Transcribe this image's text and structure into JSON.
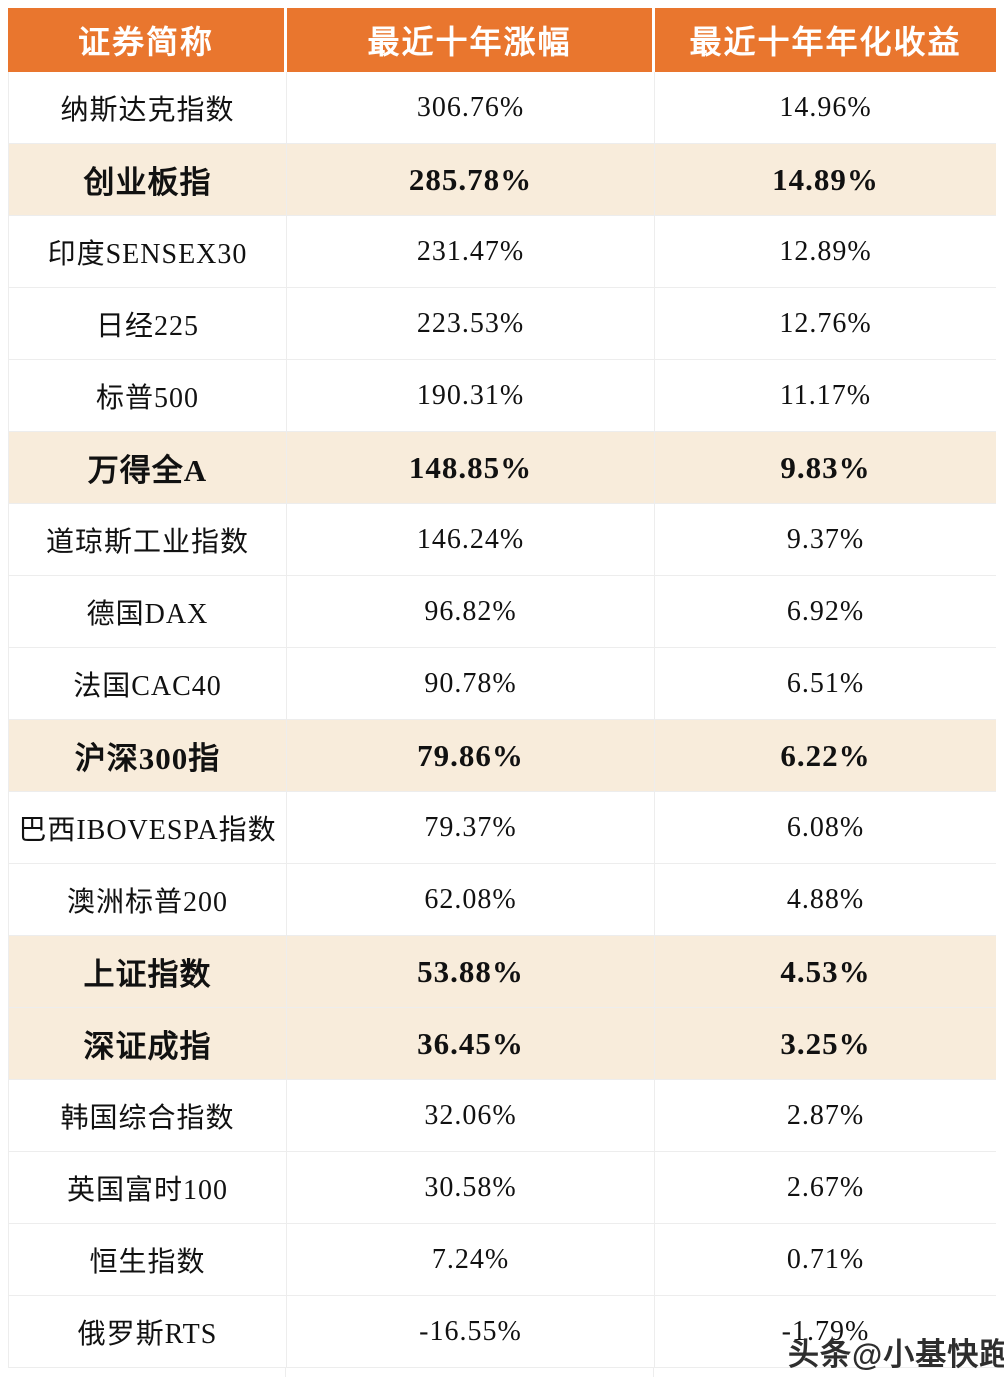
{
  "chart_data": {
    "type": "table",
    "title": "",
    "columns": [
      "证券简称",
      "最近十年涨幅",
      "最近十年年化收益"
    ],
    "rows": [
      {
        "name": "纳斯达克指数",
        "gain": "306.76%",
        "annual": "14.96%",
        "highlight": false
      },
      {
        "name": "创业板指",
        "gain": "285.78%",
        "annual": "14.89%",
        "highlight": true
      },
      {
        "name": "印度SENSEX30",
        "gain": "231.47%",
        "annual": "12.89%",
        "highlight": false
      },
      {
        "name": "日经225",
        "gain": "223.53%",
        "annual": "12.76%",
        "highlight": false
      },
      {
        "name": "标普500",
        "gain": "190.31%",
        "annual": "11.17%",
        "highlight": false
      },
      {
        "name": "万得全A",
        "gain": "148.85%",
        "annual": "9.83%",
        "highlight": true
      },
      {
        "name": "道琼斯工业指数",
        "gain": "146.24%",
        "annual": "9.37%",
        "highlight": false
      },
      {
        "name": "德国DAX",
        "gain": "96.82%",
        "annual": "6.92%",
        "highlight": false
      },
      {
        "name": "法国CAC40",
        "gain": "90.78%",
        "annual": "6.51%",
        "highlight": false
      },
      {
        "name": "沪深300指",
        "gain": "79.86%",
        "annual": "6.22%",
        "highlight": true
      },
      {
        "name": "巴西IBOVESPA指数",
        "gain": "79.37%",
        "annual": "6.08%",
        "highlight": false
      },
      {
        "name": "澳洲标普200",
        "gain": "62.08%",
        "annual": "4.88%",
        "highlight": false
      },
      {
        "name": "上证指数",
        "gain": "53.88%",
        "annual": "4.53%",
        "highlight": true
      },
      {
        "name": "深证成指",
        "gain": "36.45%",
        "annual": "3.25%",
        "highlight": true
      },
      {
        "name": "韩国综合指数",
        "gain": "32.06%",
        "annual": "2.87%",
        "highlight": false
      },
      {
        "name": "英国富时100",
        "gain": "30.58%",
        "annual": "2.67%",
        "highlight": false
      },
      {
        "name": "恒生指数",
        "gain": "7.24%",
        "annual": "0.71%",
        "highlight": false
      },
      {
        "name": "俄罗斯RTS",
        "gain": "-16.55%",
        "annual": "-1.79%",
        "highlight": false
      }
    ]
  },
  "watermark": "头条@小基快跑",
  "colors": {
    "header_bg": "#E9762E",
    "highlight_bg": "#F8ECDB",
    "border": "#EDEDED",
    "header_text": "#FFFFFF"
  }
}
